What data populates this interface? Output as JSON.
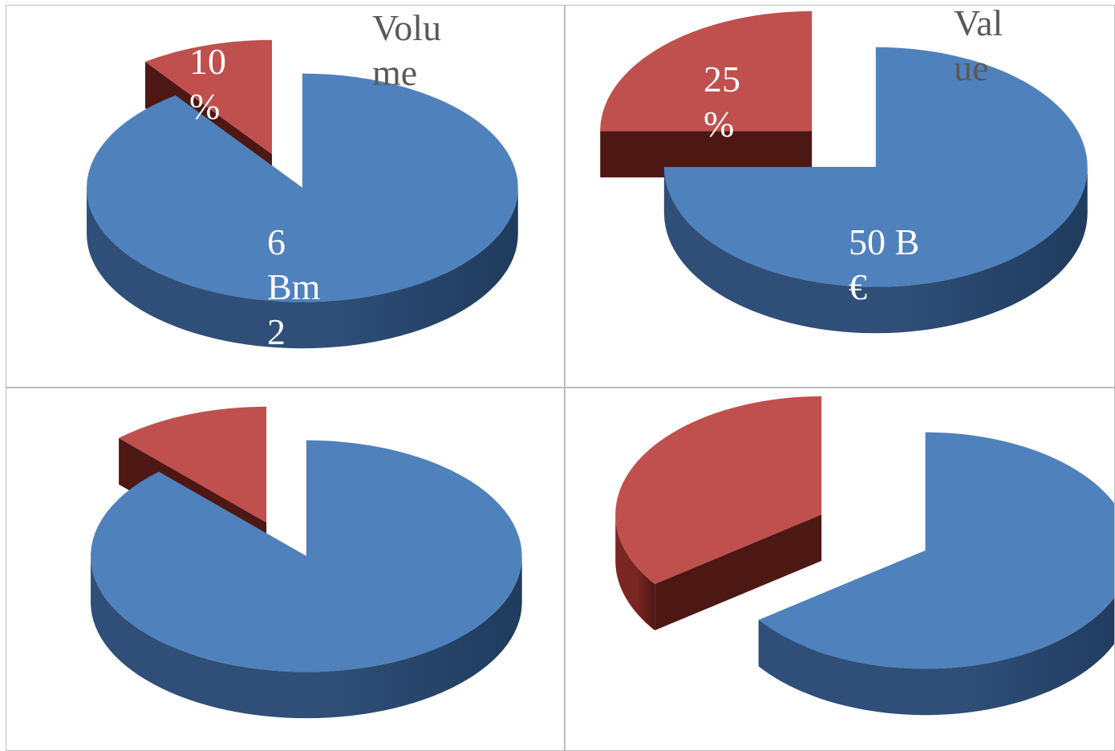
{
  "colors": {
    "primary_top": "#4f81bd",
    "primary_side": "#2f4f78",
    "primary_dark": "#1f3b5d",
    "secondary_top": "#c0504d",
    "secondary_side": "#7a2622",
    "secondary_dark": "#4d1714"
  },
  "chart_data": [
    {
      "type": "pie",
      "title": "Volu\nme",
      "slices": [
        {
          "label": "6\nBm\n2",
          "value": 90
        },
        {
          "label": "10\n%",
          "value": 10
        }
      ]
    },
    {
      "type": "pie",
      "title": "Val\nue",
      "slices": [
        {
          "label": "50 B\n€",
          "value": 75
        },
        {
          "label": "25\n%",
          "value": 25
        }
      ]
    },
    {
      "type": "pie",
      "title": "",
      "slices": [
        {
          "label": "",
          "value": 88
        },
        {
          "label": "",
          "value": 12
        }
      ]
    },
    {
      "type": "pie",
      "title": "",
      "slices": [
        {
          "label": "",
          "value": 65
        },
        {
          "label": "",
          "value": 35
        }
      ]
    }
  ]
}
